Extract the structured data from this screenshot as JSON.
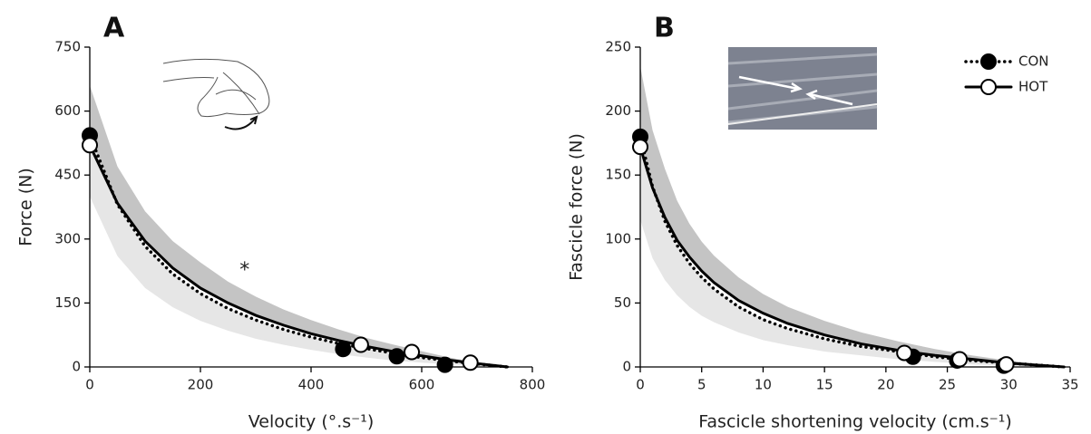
{
  "chart_data": [
    {
      "type": "line",
      "panel_label": "A",
      "xlabel": "Velocity (°.s⁻¹)",
      "ylabel": "Force (N)",
      "annotation": "*",
      "xlim": [
        0,
        800
      ],
      "ylim": [
        0,
        750
      ],
      "xticks": [
        0,
        200,
        400,
        600,
        800
      ],
      "yticks": [
        0,
        150,
        300,
        450,
        600,
        750
      ],
      "x": [
        0,
        50,
        100,
        150,
        200,
        250,
        300,
        350,
        400,
        450,
        500,
        550,
        600,
        650,
        700,
        755
      ],
      "bands": [
        {
          "color": "#c4c4c4",
          "upper": [
            660,
            470,
            365,
            295,
            245,
            200,
            165,
            135,
            110,
            88,
            68,
            52,
            37,
            22,
            10,
            0
          ],
          "lower": [
            520,
            384,
            295,
            232,
            185,
            150,
            121,
            98,
            78,
            62,
            48,
            36,
            26,
            16,
            8,
            0
          ]
        },
        {
          "color": "#e6e6e6",
          "upper": [
            543,
            381,
            283,
            218,
            172,
            137,
            110,
            88,
            70,
            55,
            43,
            32,
            22,
            14,
            7,
            0
          ],
          "lower": [
            400,
            260,
            185,
            140,
            108,
            85,
            66,
            52,
            40,
            30,
            22,
            15,
            10,
            6,
            3,
            0
          ]
        }
      ],
      "series": [
        {
          "color": "#000000",
          "style": "dotted",
          "marker": "filled",
          "values": [
            543,
            381,
            283,
            218,
            172,
            137,
            110,
            88,
            70,
            55,
            43,
            32,
            22,
            14,
            7,
            0
          ],
          "points_x": [
            0,
            458,
            555,
            642
          ],
          "points_y": [
            543,
            42,
            25,
            5
          ]
        },
        {
          "color": "#000000",
          "style": "solid",
          "marker": "open",
          "values": [
            520,
            384,
            295,
            232,
            185,
            150,
            121,
            98,
            78,
            62,
            48,
            36,
            26,
            16,
            8,
            0
          ],
          "points_x": [
            0,
            490,
            582,
            688
          ],
          "points_y": [
            520,
            52,
            35,
            10
          ]
        }
      ]
    },
    {
      "type": "line",
      "panel_label": "B",
      "xlabel": "Fascicle shortening velocity (cm.s⁻¹)",
      "ylabel": "Fascicle force (N)",
      "legend": "upper right",
      "xlim": [
        0,
        35
      ],
      "ylim": [
        0,
        250
      ],
      "xticks": [
        0,
        5,
        10,
        15,
        20,
        25,
        30,
        35
      ],
      "yticks": [
        0,
        50,
        100,
        150,
        200,
        250
      ],
      "x": [
        0,
        1,
        2,
        3,
        4,
        5,
        6,
        8,
        10,
        12,
        15,
        18,
        21,
        24,
        27,
        30,
        34.5
      ],
      "bands": [
        {
          "color": "#c4c4c4",
          "upper": [
            235,
            185,
            155,
            130,
            112,
            98,
            87,
            70,
            57,
            47,
            36,
            27,
            20,
            14,
            9,
            5,
            0
          ],
          "lower": [
            172,
            140,
            117,
            99,
            86,
            75,
            66,
            52,
            42,
            34,
            25,
            18,
            13,
            9,
            6,
            3,
            0
          ]
        },
        {
          "color": "#e6e6e6",
          "upper": [
            180,
            141,
            114,
            95,
            81,
            70,
            61,
            47,
            37,
            30,
            22,
            16,
            12,
            8,
            5,
            3,
            0
          ],
          "lower": [
            115,
            85,
            68,
            56,
            47,
            40,
            35,
            27,
            21,
            17,
            12,
            9,
            6,
            4,
            2,
            1,
            0
          ]
        }
      ],
      "series": [
        {
          "name": "CON",
          "color": "#000000",
          "style": "dotted",
          "marker": "filled",
          "values": [
            180,
            141,
            114,
            95,
            81,
            70,
            61,
            47,
            37,
            30,
            22,
            16,
            12,
            8,
            5,
            3,
            0
          ],
          "points_x": [
            0,
            22.2,
            25.8,
            29.6
          ],
          "points_y": [
            180,
            8,
            5,
            1
          ]
        },
        {
          "name": "HOT",
          "color": "#000000",
          "style": "solid",
          "marker": "open",
          "values": [
            172,
            140,
            117,
            99,
            86,
            75,
            66,
            52,
            42,
            34,
            25,
            18,
            13,
            9,
            6,
            3,
            0
          ],
          "points_x": [
            0,
            21.5,
            26,
            29.8
          ],
          "points_y": [
            172,
            11,
            6,
            2
          ]
        }
      ]
    }
  ]
}
